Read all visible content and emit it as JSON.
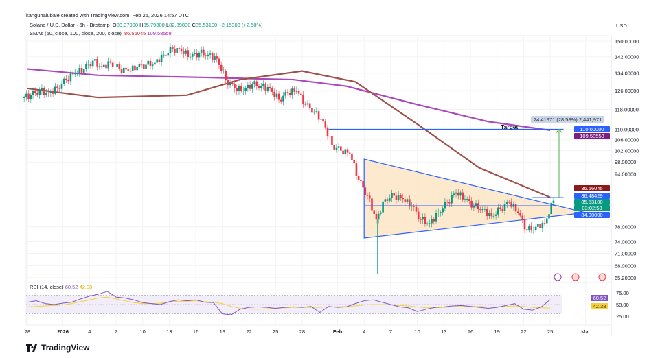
{
  "header": {
    "credit": "kanguhalubale created with TradingView.com, Feb 25, 2026 14:57 UTC",
    "symbol": "Solana / U.S. Dollar · 6h · Bitstamp",
    "o_label": "O",
    "o": "83.37900",
    "h_label": "H",
    "h": "85.79800",
    "l_label": "L",
    "l": "82.89800",
    "c_label": "C",
    "c": "85.53100",
    "change": "+2.15300 (+2.58%)",
    "sma_label": "SMAs (50, close, 100, close, 200, close)",
    "sma100": "86.56045",
    "sma200": "109.58558",
    "currency": "USD"
  },
  "rsi_header": {
    "label": "RSI (14, close)",
    "rsi": "60.52",
    "ma": "42.38"
  },
  "annotations": {
    "target": "Target",
    "measure": "24.41971 (28.58%) 2,441,971"
  },
  "price_tags": [
    {
      "value": "110.00000",
      "color": "#2962ff"
    },
    {
      "value": "109.58558",
      "color": "#7b1f86"
    },
    {
      "value": "86.56045",
      "color": "#8b1a1a"
    },
    {
      "value": "86.48429",
      "color": "#2962ff"
    },
    {
      "value": "85.53100",
      "color": "#089981"
    },
    {
      "value": "03:02:53",
      "color": "#089981"
    },
    {
      "value": "84.00000",
      "color": "#2962ff"
    }
  ],
  "rsi_tags": [
    {
      "value": "60.52",
      "color": "#7e57c2"
    },
    {
      "value": "42.38",
      "color": "#f7d133"
    }
  ],
  "logo": "TradingView",
  "colors": {
    "up": "#089981",
    "down": "#f23645",
    "sma100": "#a0504a",
    "sma200": "#ab47bc",
    "triangle_fill": "#fde3c0",
    "line_blue": "#2962ff",
    "arrow": "#4caf50",
    "rsi": "#7e57c2",
    "rsi_ma": "#f7d133"
  },
  "chart_data": {
    "type": "candlestick",
    "title": "Solana / U.S. Dollar · 6h · Bitstamp",
    "scale": "log",
    "ylim": [
      65.2,
      152
    ],
    "y_ticks": [
      "150.00000",
      "142.00000",
      "134.00000",
      "126.00000",
      "118.00000",
      "110.00000",
      "106.00000",
      "102.00000",
      "98.00000",
      "94.00000",
      "78.00000",
      "74.00000",
      "71.00000",
      "68.00000",
      "65.20000"
    ],
    "y_tick_values": [
      150,
      142,
      134,
      126,
      118,
      110,
      106,
      102,
      98,
      94,
      78,
      74,
      71,
      68,
      65.2
    ],
    "x_ticks": [
      {
        "label": "28",
        "day": 0
      },
      {
        "label": "2026",
        "day": 4,
        "bold": true
      },
      {
        "label": "4",
        "day": 7
      },
      {
        "label": "7",
        "day": 10
      },
      {
        "label": "10",
        "day": 13
      },
      {
        "label": "13",
        "day": 16
      },
      {
        "label": "16",
        "day": 19
      },
      {
        "label": "19",
        "day": 22
      },
      {
        "label": "22",
        "day": 25
      },
      {
        "label": "25",
        "day": 28
      },
      {
        "label": "28",
        "day": 31
      },
      {
        "label": "Feb",
        "day": 35,
        "bold": true
      },
      {
        "label": "4",
        "day": 38
      },
      {
        "label": "7",
        "day": 41
      },
      {
        "label": "10",
        "day": 44
      },
      {
        "label": "13",
        "day": 47
      },
      {
        "label": "16",
        "day": 50
      },
      {
        "label": "19",
        "day": 53
      },
      {
        "label": "22",
        "day": 56
      },
      {
        "label": "25",
        "day": 59
      },
      {
        "label": "Mar",
        "day": 63
      }
    ],
    "daily_close": [
      124,
      126,
      125,
      127,
      131,
      134,
      136,
      140,
      137,
      139,
      136,
      135,
      137,
      138,
      139,
      143,
      146,
      145,
      142,
      144,
      143,
      141,
      131,
      127,
      126,
      129,
      128,
      127,
      122,
      125,
      126,
      120,
      117,
      113,
      104,
      102,
      101,
      92,
      87,
      80,
      86,
      87,
      86,
      84,
      80,
      79,
      82,
      85,
      88,
      86,
      84,
      83,
      81,
      83,
      85,
      82,
      77,
      78,
      79,
      85.5
    ],
    "sma100": [
      [
        0,
        127
      ],
      [
        8,
        123
      ],
      [
        18,
        124
      ],
      [
        24,
        131
      ],
      [
        31,
        135
      ],
      [
        37,
        130
      ],
      [
        44,
        112
      ],
      [
        51,
        96
      ],
      [
        59,
        86.56
      ]
    ],
    "sma200": [
      [
        0,
        136
      ],
      [
        8,
        133
      ],
      [
        20,
        132
      ],
      [
        30,
        131
      ],
      [
        36,
        128
      ],
      [
        44,
        120
      ],
      [
        52,
        113
      ],
      [
        59,
        109.59
      ]
    ],
    "triangle": [
      [
        38,
        99
      ],
      [
        38,
        75
      ],
      [
        63,
        82
      ]
    ],
    "levels": [
      {
        "price": 110,
        "from": 34,
        "to": 60.5
      },
      {
        "price": 86.48,
        "from": 57,
        "to": 60.5
      },
      {
        "price": 84,
        "from": 38,
        "to": 60
      }
    ],
    "arrow": {
      "day": 60,
      "from": 86.48,
      "to": 110
    },
    "rsi": {
      "ylim": [
        15,
        80
      ],
      "levels": [
        70,
        50,
        30
      ],
      "y_ticks": [
        "75.00",
        "50.00",
        "25.00"
      ],
      "values": [
        55,
        58,
        52,
        50,
        53,
        55,
        62,
        68,
        72,
        78,
        66,
        64,
        60,
        54,
        52,
        50,
        56,
        60,
        58,
        60,
        55,
        54,
        30,
        28,
        40,
        44,
        45,
        44,
        42,
        44,
        45,
        44,
        46,
        33,
        46,
        44,
        45,
        52,
        58,
        60,
        55,
        50,
        45,
        43,
        35,
        40,
        44,
        45,
        47,
        48,
        46,
        44,
        42,
        44,
        48,
        52,
        40,
        38,
        45,
        60.52
      ],
      "ma": [
        45,
        46,
        47,
        48,
        49,
        52,
        56,
        60,
        64,
        66,
        62,
        58,
        54,
        52,
        52,
        53,
        55,
        57,
        57,
        58,
        56,
        55,
        52,
        46,
        42,
        40,
        40,
        41,
        42,
        43,
        44,
        44,
        44,
        44,
        45,
        45,
        46,
        47,
        49,
        50,
        50,
        49,
        48,
        47,
        45,
        43,
        43,
        44,
        45,
        46,
        46,
        46,
        45,
        45,
        46,
        47,
        46,
        44,
        43,
        42.38
      ]
    }
  }
}
